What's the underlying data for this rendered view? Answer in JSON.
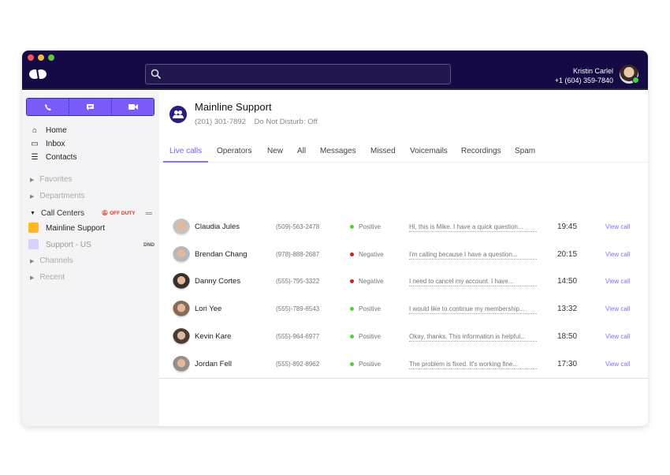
{
  "window": {
    "traffic_lights": [
      "#ee5a52",
      "#f6b83c",
      "#5fc73d"
    ]
  },
  "header": {
    "search_placeholder": "",
    "user": {
      "name": "Kristin Carlel",
      "phone": "+1 (604) 359-7840",
      "status_color": "#3fd53f"
    }
  },
  "sidebar": {
    "actions": [
      {
        "icon": "phone-icon"
      },
      {
        "icon": "message-icon"
      },
      {
        "icon": "video-icon"
      }
    ],
    "nav": [
      {
        "label": "Home",
        "icon": "home-icon"
      },
      {
        "label": "Inbox",
        "icon": "inbox-icon"
      },
      {
        "label": "Contacts",
        "icon": "contacts-icon"
      }
    ],
    "sections": {
      "favorites": "Favorites",
      "departments": "Departments",
      "call_centers": "Call Centers",
      "off_duty": "OFF DUTY",
      "channels": "Channels",
      "recent": "Recent"
    },
    "call_centers": [
      {
        "label": "Mainline Support",
        "color": "#ffb81f"
      },
      {
        "label": "Support - US",
        "badge": "DND",
        "color": "#d9d0ff"
      }
    ]
  },
  "main": {
    "title": "Mainline Support",
    "phone": "(201) 301-7892",
    "dnd": "Do Not Disturb: Off",
    "tabs": [
      "Live calls",
      "Operators",
      "New",
      "All",
      "Messages",
      "Missed",
      "Voicemails",
      "Recordings",
      "Spam"
    ],
    "active_tab": "Live calls",
    "calls": [
      {
        "name": "Claudia Jules",
        "phone": "(509)-563-2478",
        "sentiment": "Positive",
        "transcript": "Hi, this is Mike. I have a quick question...",
        "time": "19:45",
        "action": "View call"
      },
      {
        "name": "Brendan Chang",
        "phone": "(978)-888-2687",
        "sentiment": "Negative",
        "transcript": "I'm calling because I have a question...",
        "time": "20:15",
        "action": "View call"
      },
      {
        "name": "Danny Cortes",
        "phone": "(555)-795-3322",
        "sentiment": "Negative",
        "transcript": "I need to cancel my account. I have...",
        "time": "14:50",
        "action": "View call"
      },
      {
        "name": "Lori Yee",
        "phone": "(555)-789-6543",
        "sentiment": "Positive",
        "transcript": "I would like to continue my membership...",
        "time": "13:32",
        "action": "View call"
      },
      {
        "name": "Kevin Kare",
        "phone": "(555)-964-6977",
        "sentiment": "Positive",
        "transcript": "Okay, thanks. This information is helpful...",
        "time": "18:50",
        "action": "View call"
      },
      {
        "name": "Jordan Fell",
        "phone": "(555)-892-8962",
        "sentiment": "Positive",
        "transcript": "The problem is fixed. It's working fine...",
        "time": "17:30",
        "action": "View call"
      }
    ],
    "colors": {
      "accent": "#7b5cfa",
      "positive": "#4cd62b",
      "negative": "#d0201a",
      "header": "#160a45"
    }
  }
}
